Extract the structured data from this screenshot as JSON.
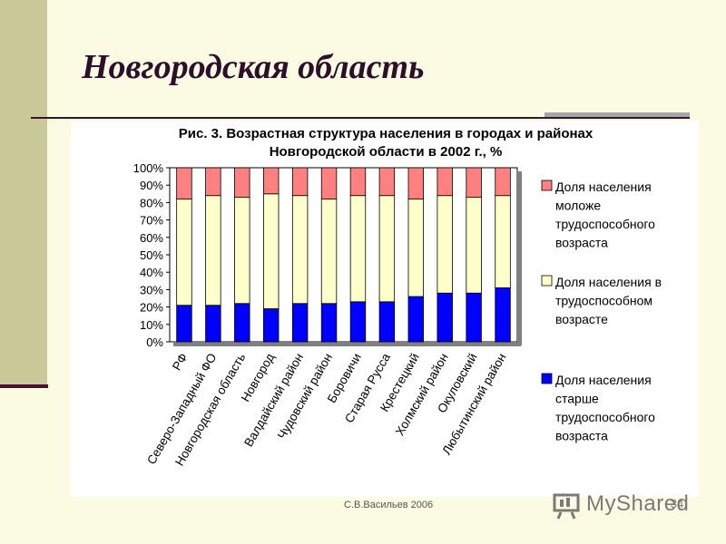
{
  "slide": {
    "title": "Новгородская область",
    "footer": "С.В.Васильев 2006",
    "logo_text": "MyShared"
  },
  "chart_data": {
    "type": "bar",
    "stacked": true,
    "title_line1": "Рис. 3. Возрастная структура населения в городах и районах",
    "title_line2": "Новгородской области в 2002 г., %",
    "categories": [
      "РФ",
      "Северо-Западный ФО",
      "Новгородская область",
      "Новгород",
      "Валдайский район",
      "Чудовский район",
      "Боровичи",
      "Старая Русса",
      "Крестецкий",
      "Холмский район",
      "Окуловский",
      "Любытинский район"
    ],
    "series": [
      {
        "name": "Доля населения старше трудоспособного возраста",
        "color": "#0000ff",
        "values": [
          21,
          21,
          22,
          19,
          22,
          22,
          23,
          23,
          26,
          28,
          28,
          31
        ]
      },
      {
        "name": "Доля населения в трудоспособном возрасте",
        "color": "#ffffcc",
        "values": [
          61,
          63,
          61,
          66,
          62,
          60,
          61,
          61,
          56,
          56,
          55,
          53
        ]
      },
      {
        "name": "Доля населения моложе трудоспособного возраста",
        "color": "#ff8080",
        "values": [
          18,
          16,
          17,
          15,
          16,
          18,
          16,
          16,
          18,
          16,
          17,
          16
        ]
      }
    ],
    "yticks": [
      "0%",
      "10%",
      "20%",
      "30%",
      "40%",
      "50%",
      "60%",
      "70%",
      "80%",
      "90%",
      "100%"
    ],
    "ylim": [
      0,
      100
    ],
    "legend": [
      {
        "lines": [
          "Доля населения",
          "моложе",
          "трудоспособного",
          "возраста"
        ],
        "color": "#ff8080"
      },
      {
        "lines": [
          "Доля населения в",
          "трудоспособном",
          "возрасте"
        ],
        "color": "#ffffcc"
      },
      {
        "lines": [
          "Доля населения",
          "старше",
          "трудоспособного",
          "возраста"
        ],
        "color": "#0000ff"
      }
    ],
    "page_number": "34"
  }
}
